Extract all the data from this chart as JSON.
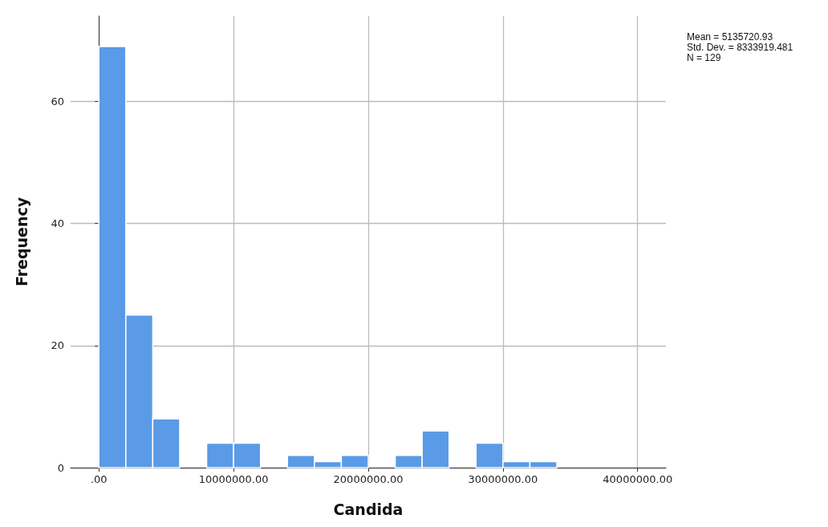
{
  "chart_data": {
    "type": "histogram",
    "xlabel": "Candida",
    "ylabel": "Frequency",
    "bins": [
      0,
      2000000,
      4000000,
      6000000,
      8000000,
      10000000,
      12000000,
      14000000,
      16000000,
      18000000,
      20000000,
      22000000,
      24000000,
      26000000,
      28000000,
      30000000,
      32000000,
      34000000
    ],
    "values": [
      69,
      25,
      8,
      0,
      4,
      4,
      0,
      2,
      1,
      2,
      0,
      2,
      6,
      0,
      4,
      1,
      1
    ],
    "color": "#5a9ae6",
    "xlim": [
      -2100000,
      42100000
    ],
    "xticks": [
      {
        "value": 0,
        "label": ".00"
      },
      {
        "value": 10000000,
        "label": "10000000.00"
      },
      {
        "value": 20000000,
        "label": "20000000.00"
      },
      {
        "value": 30000000,
        "label": "30000000.00"
      },
      {
        "value": 40000000,
        "label": "40000000.00"
      }
    ],
    "ylim": [
      0,
      74
    ],
    "yticks": [
      0,
      20,
      40,
      60
    ],
    "grid": true,
    "annotations": [
      "Mean = 5135720.93",
      "Std. Dev. = 8333919.481",
      "N = 129"
    ]
  }
}
